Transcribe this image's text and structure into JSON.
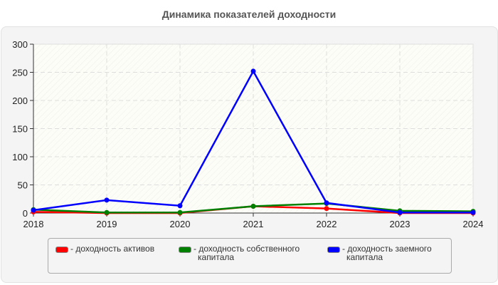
{
  "title": "Динамика показателей доходности",
  "chart_data": {
    "type": "line",
    "title": "Динамика показателей доходности",
    "xlabel": "",
    "ylabel": "",
    "x": [
      "2018",
      "2019",
      "2020",
      "2021",
      "2022",
      "2023",
      "2024"
    ],
    "ylim": [
      0,
      300
    ],
    "yticks": [
      0,
      50,
      100,
      150,
      200,
      250,
      300
    ],
    "grid": true,
    "legend_position": "bottom",
    "series": [
      {
        "name": "- доходность активов",
        "color": "#ff0000",
        "values": [
          2,
          0,
          0,
          12,
          8,
          0,
          0
        ]
      },
      {
        "name": "- доходность собственного капитала",
        "color": "#008000",
        "values": [
          6,
          1,
          1,
          12,
          17,
          4,
          3
        ]
      },
      {
        "name": "- доходность заемного капитала",
        "color": "#0000ff",
        "values": [
          5,
          23,
          13,
          252,
          18,
          1,
          1
        ]
      }
    ]
  },
  "legend": {
    "items": [
      {
        "line1": "- доходность активов",
        "line2": "",
        "color": "#ff0000"
      },
      {
        "line1": "- доходность собственного",
        "line2": "капитала",
        "color": "#008000"
      },
      {
        "line1": "- доходность заемного",
        "line2": "капитала",
        "color": "#0000ff"
      }
    ]
  }
}
